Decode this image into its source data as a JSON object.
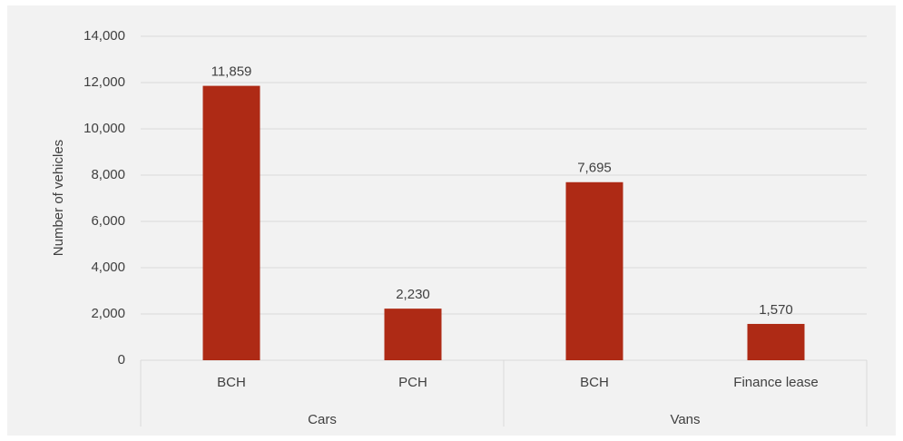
{
  "chart_data": {
    "type": "bar",
    "y_label": "Number of vehicles",
    "groups": [
      {
        "name": "Cars",
        "categories": [
          "BCH",
          "PCH"
        ],
        "values": [
          11859,
          2230
        ],
        "value_labels": [
          "11,859",
          "2,230"
        ]
      },
      {
        "name": "Vans",
        "categories": [
          "BCH",
          "Finance lease"
        ],
        "values": [
          7695,
          1570
        ],
        "value_labels": [
          "7,695",
          "1,570"
        ]
      }
    ],
    "color": "#ae2a15",
    "ylim": [
      0,
      14000
    ],
    "yticks": [
      0,
      {
        "value": 2000,
        "label": "2,000"
      },
      {
        "value": 4000,
        "label": "4,000"
      },
      {
        "value": 6000,
        "label": "6,000"
      },
      {
        "value": 8000,
        "label": "8,000"
      },
      {
        "value": 10000,
        "label": "10,000"
      },
      {
        "value": 12000,
        "label": "12,000"
      },
      {
        "value": 14000,
        "label": "14,000"
      }
    ],
    "grid": true
  }
}
